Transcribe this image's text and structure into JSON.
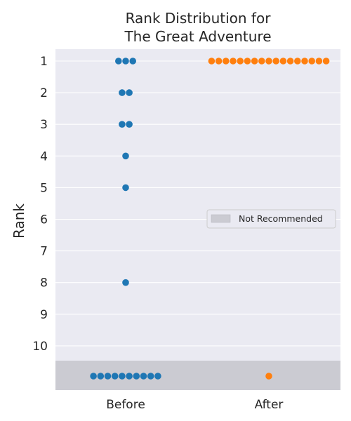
{
  "chart_data": {
    "type": "scatter",
    "subtype": "swarm",
    "title": "Rank Distribution for\nThe Great Adventure",
    "xlabel": "",
    "ylabel": "Rank",
    "categories": [
      "Before",
      "After"
    ],
    "y_ticks": [
      "1",
      "2",
      "3",
      "4",
      "5",
      "6",
      "7",
      "8",
      "9",
      "10"
    ],
    "y_range": [
      1,
      10
    ],
    "y_inverted": true,
    "not_recommended_category": "Not Recommended",
    "series": [
      {
        "name": "Before",
        "color": "#1f77b4",
        "rank_counts": {
          "1": 3,
          "2": 2,
          "3": 2,
          "4": 1,
          "5": 1,
          "8": 1,
          "Not Recommended": 10
        }
      },
      {
        "name": "After",
        "color": "#ff7f0e",
        "rank_counts": {
          "1": 17,
          "Not Recommended": 1
        }
      }
    ],
    "legend": {
      "entries": [
        "Not Recommended"
      ],
      "placement": "center-right",
      "swatch_color": "#cbcbd2"
    },
    "background_color": "#eaeaf2",
    "grid": true,
    "grid_axis": "y"
  }
}
